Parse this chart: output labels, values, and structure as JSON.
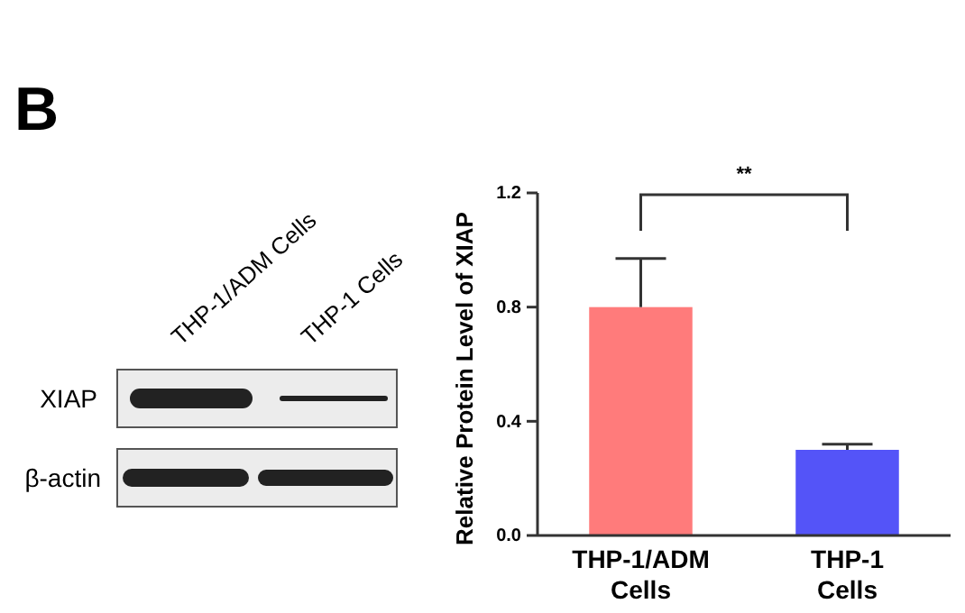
{
  "chart_data": {
    "type": "bar",
    "ylabel": "Relative Protein Level of XIAP",
    "categories": [
      "THP-1/ADM\nCells",
      "THP-1\nCells"
    ],
    "values": [
      0.8,
      0.3
    ],
    "colors": [
      "#ff7b7b",
      "#5454f8"
    ],
    "errors": [
      [
        0.8,
        0.97
      ],
      [
        0.3,
        0.32
      ]
    ],
    "ylim": [
      0,
      1.2
    ],
    "yticks": [
      {
        "value": 0,
        "label": "0.0"
      },
      0.4,
      0.8,
      1.2
    ],
    "grid": false,
    "annotations": [
      "B",
      "**",
      "THP-1/ADM Cells",
      "THP-1 Cells",
      "XIAP",
      "β-actin"
    ]
  }
}
